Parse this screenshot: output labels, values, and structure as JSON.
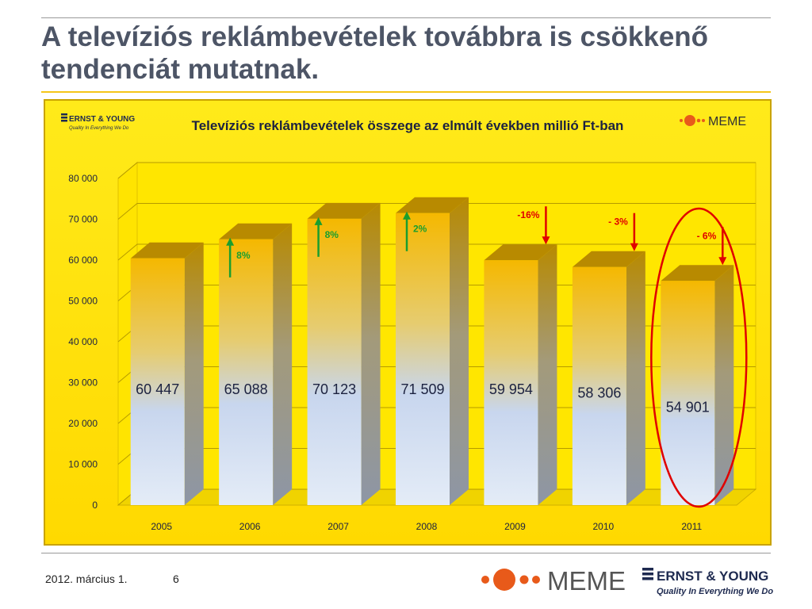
{
  "slide": {
    "title": "A televíziós reklámbevételek továbbra is csökkenő tendenciát mutatnak.",
    "date": "2012. március 1.",
    "page": "6"
  },
  "logos": {
    "ey_name": "ERNST & YOUNG",
    "ey_tagline": "Quality In Everything We Do",
    "meme_name": "MEME"
  },
  "colors": {
    "panel_bg": "#ffe600",
    "bar_top": "#f5b800",
    "bar_bottom": "#dde8f6",
    "bar_side": "#8f8f8f",
    "bar_cap": "#b88a00",
    "arrow_up": "#1a9e2e",
    "arrow_down": "#e00000",
    "ellipse": "#e00000"
  },
  "chart_data": {
    "type": "bar",
    "title": "Televíziós reklámbevételek összege az elmúlt években millió Ft-ban",
    "categories": [
      "2005",
      "2006",
      "2007",
      "2008",
      "2009",
      "2010",
      "2011"
    ],
    "values": [
      60447,
      65088,
      70123,
      71509,
      59954,
      58306,
      54901
    ],
    "value_labels": [
      "60 447",
      "65 088",
      "70 123",
      "71 509",
      "59 954",
      "58 306",
      "54 901"
    ],
    "ylim": [
      0,
      80000
    ],
    "yticks": [
      0,
      10000,
      20000,
      30000,
      40000,
      50000,
      60000,
      70000,
      80000
    ],
    "ytick_labels": [
      "0",
      "10 000",
      "20 000",
      "30 000",
      "40 000",
      "50 000",
      "60 000",
      "70 000",
      "80 000"
    ],
    "grid": true,
    "style": "3d-column",
    "annotations": [
      {
        "category": "2006",
        "text": "8%",
        "direction": "up"
      },
      {
        "category": "2007",
        "text": "8%",
        "direction": "up"
      },
      {
        "category": "2008",
        "text": "2%",
        "direction": "up"
      },
      {
        "category": "2009",
        "text": "-16%",
        "direction": "down"
      },
      {
        "category": "2010",
        "text": "- 3%",
        "direction": "down"
      },
      {
        "category": "2011",
        "text": "- 6%",
        "direction": "down"
      }
    ],
    "highlight": {
      "category": "2011",
      "shape": "ellipse"
    }
  }
}
